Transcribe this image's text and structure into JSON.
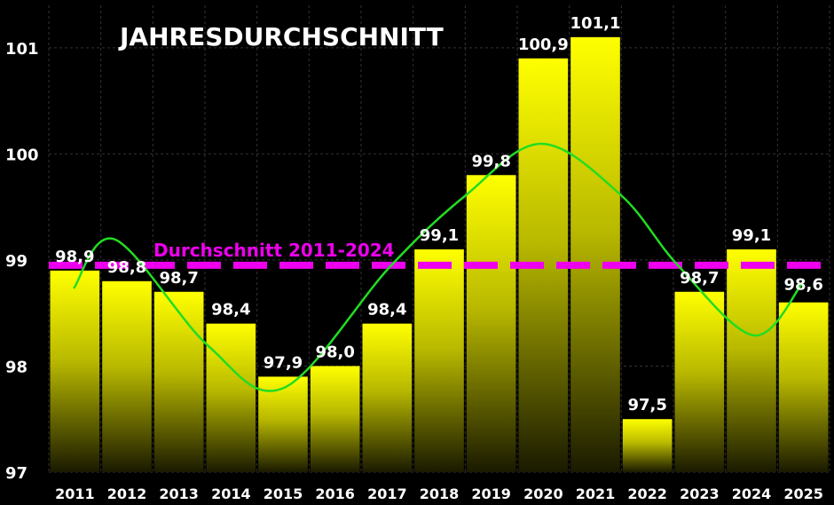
{
  "chart_data": {
    "type": "bar",
    "title": "JAHRESDURCHSCHNITT",
    "categories": [
      "2011",
      "2012",
      "2013",
      "2014",
      "2015",
      "2016",
      "2017",
      "2018",
      "2019",
      "2020",
      "2021",
      "2022",
      "2023",
      "2024",
      "2025"
    ],
    "values": [
      98.9,
      98.8,
      98.7,
      98.4,
      97.9,
      98.0,
      98.4,
      99.1,
      99.8,
      100.9,
      101.1,
      97.5,
      98.7,
      99.1,
      98.6
    ],
    "value_labels": [
      "98,9",
      "98,8",
      "98,7",
      "98,4",
      "97,9",
      "98,0",
      "98,4",
      "99,1",
      "99,8",
      "100,9",
      "101,1",
      "97,5",
      "98,7",
      "99,1",
      "98,6"
    ],
    "highlight_label_index": 14,
    "ylim": [
      97,
      101.4
    ],
    "yticks": [
      97,
      98,
      99,
      100,
      101
    ],
    "ytick_labels": [
      "97",
      "98",
      "99",
      "100",
      "101"
    ],
    "average_line": {
      "label": "Durchschnitt 2011-2024",
      "value": 98.95
    },
    "trend_curve": "smooth sinusoidal trend line (green)",
    "grid": true,
    "colors": {
      "background": "#000000",
      "bar_top": "#ffff00",
      "bar_bottom": "#1a1a00",
      "average_line": "#ee00ee",
      "trend_line": "#22dd22",
      "highlight_label": "#22ff22",
      "text": "#ffffff"
    }
  }
}
